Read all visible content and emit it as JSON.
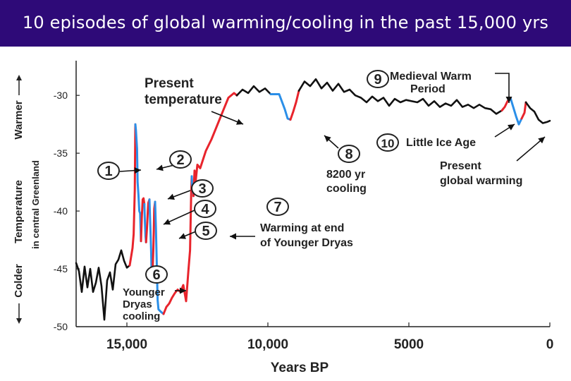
{
  "page": {
    "title": "10 episodes of global warming/cooling in the past 15,000 yrs"
  },
  "colors": {
    "warming": "#e8242c",
    "cooling": "#2b8fe8",
    "baseline": "#111111",
    "title_bg": "#2e0a78"
  },
  "chart_data": {
    "type": "line",
    "title": "10 episodes of global warming/cooling in the past 15,000 yrs",
    "xlabel": "Years BP",
    "ylabel": "Temperature in central Greenland",
    "ylabel_line1": "Temperature",
    "ylabel_line2": "in central Greenland",
    "y_warmer": "Warmer",
    "y_colder": "Colder",
    "xlim": [
      16800,
      0
    ],
    "ylim": [
      -50,
      -27
    ],
    "x_ticks": [
      {
        "v": 15000,
        "label": "15,000"
      },
      {
        "v": 10000,
        "label": "10,000"
      },
      {
        "v": 5000,
        "label": "5000"
      },
      {
        "v": 0,
        "label": "0"
      }
    ],
    "y_ticks": [
      {
        "v": -30,
        "label": "-30"
      },
      {
        "v": -35,
        "label": "-35"
      },
      {
        "v": -40,
        "label": "-40"
      },
      {
        "v": -45,
        "label": "-45"
      },
      {
        "v": -50,
        "label": "-50"
      }
    ],
    "series": [
      {
        "kind": "baseline",
        "points": [
          [
            16800,
            -44.5
          ],
          [
            16700,
            -45.2
          ],
          [
            16600,
            -47.0
          ],
          [
            16500,
            -44.8
          ],
          [
            16400,
            -46.6
          ],
          [
            16300,
            -45.0
          ],
          [
            16200,
            -47.0
          ],
          [
            16100,
            -46.2
          ],
          [
            16000,
            -44.9
          ],
          [
            15900,
            -46.5
          ],
          [
            15800,
            -49.4
          ],
          [
            15700,
            -46.0
          ],
          [
            15600,
            -45.3
          ],
          [
            15500,
            -46.8
          ],
          [
            15400,
            -44.6
          ],
          [
            15300,
            -44.2
          ],
          [
            15200,
            -43.4
          ],
          [
            15100,
            -44.3
          ],
          [
            15000,
            -44.9
          ],
          [
            14900,
            -44.7
          ]
        ]
      },
      {
        "kind": "warming",
        "points": [
          [
            14900,
            -44.7
          ],
          [
            14800,
            -43.2
          ],
          [
            14760,
            -42.0
          ],
          [
            14720,
            -38.2
          ],
          [
            14700,
            -32.5
          ]
        ]
      },
      {
        "kind": "cooling",
        "points": [
          [
            14700,
            -32.5
          ],
          [
            14680,
            -33.0
          ],
          [
            14640,
            -34.6
          ],
          [
            14620,
            -37.5
          ],
          [
            14590,
            -38.6
          ],
          [
            14560,
            -40.0
          ],
          [
            14530,
            -40.2
          ],
          [
            14500,
            -42.6
          ]
        ]
      },
      {
        "kind": "warming",
        "points": [
          [
            14500,
            -42.6
          ],
          [
            14470,
            -40.5
          ],
          [
            14440,
            -39.0
          ],
          [
            14410,
            -38.9
          ],
          [
            14380,
            -39.4
          ]
        ]
      },
      {
        "kind": "cooling",
        "points": [
          [
            14380,
            -39.4
          ],
          [
            14360,
            -41.0
          ],
          [
            14340,
            -42.2
          ],
          [
            14320,
            -42.7
          ]
        ]
      },
      {
        "kind": "warming",
        "points": [
          [
            14320,
            -42.7
          ],
          [
            14290,
            -41.6
          ],
          [
            14260,
            -40.1
          ],
          [
            14240,
            -39.3
          ],
          [
            14200,
            -39.0
          ]
        ]
      },
      {
        "kind": "cooling",
        "points": [
          [
            14200,
            -39.0
          ],
          [
            14170,
            -41.2
          ],
          [
            14140,
            -43.5
          ],
          [
            14120,
            -45.8
          ],
          [
            14100,
            -46.0
          ]
        ]
      },
      {
        "kind": "warming",
        "points": [
          [
            14100,
            -46.0
          ],
          [
            14060,
            -43.2
          ],
          [
            14030,
            -39.8
          ],
          [
            14000,
            -39.2
          ]
        ]
      },
      {
        "kind": "cooling",
        "points": [
          [
            14000,
            -39.2
          ],
          [
            13970,
            -41.5
          ],
          [
            13940,
            -44.6
          ],
          [
            13910,
            -47.7
          ],
          [
            13880,
            -48.5
          ],
          [
            13800,
            -48.7
          ],
          [
            13700,
            -48.9
          ]
        ]
      },
      {
        "kind": "warming",
        "points": [
          [
            13700,
            -48.9
          ],
          [
            13600,
            -48.3
          ],
          [
            13500,
            -48.0
          ],
          [
            13400,
            -47.5
          ],
          [
            13300,
            -47.1
          ],
          [
            13200,
            -46.8
          ],
          [
            13100,
            -47.0
          ],
          [
            13000,
            -46.4
          ],
          [
            12900,
            -47.8
          ],
          [
            12820,
            -45.2
          ],
          [
            12760,
            -43.4
          ],
          [
            12720,
            -38.5
          ],
          [
            12700,
            -37.0
          ]
        ]
      },
      {
        "kind": "cooling",
        "points": [
          [
            12700,
            -37.0
          ],
          [
            12680,
            -38.0
          ],
          [
            12660,
            -37.7
          ],
          [
            12640,
            -38.7
          ]
        ]
      },
      {
        "kind": "warming",
        "points": [
          [
            12640,
            -38.7
          ],
          [
            12600,
            -36.5
          ],
          [
            12560,
            -37.4
          ],
          [
            12500,
            -36.0
          ],
          [
            12400,
            -36.3
          ],
          [
            12200,
            -34.8
          ],
          [
            12000,
            -33.8
          ],
          [
            11800,
            -32.6
          ],
          [
            11600,
            -31.4
          ],
          [
            11400,
            -30.2
          ],
          [
            11200,
            -29.8
          ],
          [
            11100,
            -30.0
          ]
        ]
      },
      {
        "kind": "baseline",
        "points": [
          [
            11100,
            -30.0
          ],
          [
            10900,
            -29.5
          ],
          [
            10700,
            -29.8
          ],
          [
            10500,
            -29.2
          ],
          [
            10300,
            -29.7
          ],
          [
            10100,
            -29.4
          ],
          [
            9900,
            -29.9
          ]
        ]
      },
      {
        "kind": "cooling",
        "points": [
          [
            9900,
            -29.9
          ],
          [
            9600,
            -29.9
          ],
          [
            9400,
            -31.2
          ],
          [
            9300,
            -32.0
          ],
          [
            9200,
            -32.1
          ]
        ]
      },
      {
        "kind": "warming",
        "points": [
          [
            9200,
            -32.1
          ],
          [
            9100,
            -31.4
          ],
          [
            9000,
            -30.6
          ],
          [
            8900,
            -29.6
          ]
        ]
      },
      {
        "kind": "baseline",
        "points": [
          [
            8900,
            -29.6
          ],
          [
            8700,
            -28.8
          ],
          [
            8500,
            -29.2
          ],
          [
            8300,
            -28.6
          ],
          [
            8100,
            -29.4
          ],
          [
            7900,
            -28.9
          ],
          [
            7700,
            -29.6
          ],
          [
            7500,
            -29.0
          ],
          [
            7300,
            -29.7
          ],
          [
            7100,
            -29.5
          ],
          [
            6900,
            -30.0
          ],
          [
            6700,
            -30.2
          ],
          [
            6500,
            -30.6
          ],
          [
            6300,
            -30.1
          ],
          [
            6100,
            -30.5
          ],
          [
            5900,
            -30.2
          ],
          [
            5700,
            -30.9
          ],
          [
            5500,
            -30.3
          ],
          [
            5300,
            -30.6
          ],
          [
            5100,
            -30.4
          ],
          [
            4900,
            -30.5
          ],
          [
            4700,
            -30.6
          ],
          [
            4500,
            -30.3
          ],
          [
            4300,
            -30.9
          ],
          [
            4100,
            -30.5
          ],
          [
            3900,
            -31.0
          ],
          [
            3700,
            -30.7
          ],
          [
            3500,
            -30.9
          ],
          [
            3300,
            -30.4
          ],
          [
            3100,
            -31.0
          ],
          [
            2900,
            -30.8
          ],
          [
            2700,
            -31.1
          ],
          [
            2500,
            -30.8
          ],
          [
            2300,
            -31.1
          ],
          [
            2100,
            -31.2
          ],
          [
            1900,
            -31.6
          ],
          [
            1700,
            -31.3
          ]
        ]
      },
      {
        "kind": "warming",
        "points": [
          [
            1700,
            -31.3
          ],
          [
            1600,
            -31.0
          ],
          [
            1500,
            -30.5
          ],
          [
            1400,
            -30.2
          ]
        ]
      },
      {
        "kind": "cooling",
        "points": [
          [
            1400,
            -30.2
          ],
          [
            1300,
            -31.0
          ],
          [
            1200,
            -31.8
          ],
          [
            1100,
            -32.5
          ],
          [
            1000,
            -32.0
          ]
        ]
      },
      {
        "kind": "warming",
        "points": [
          [
            1000,
            -32.0
          ],
          [
            900,
            -31.5
          ],
          [
            850,
            -30.6
          ]
        ]
      },
      {
        "kind": "baseline",
        "points": [
          [
            850,
            -30.6
          ],
          [
            700,
            -31.1
          ],
          [
            550,
            -31.4
          ],
          [
            400,
            -32.1
          ],
          [
            250,
            -32.4
          ],
          [
            100,
            -32.3
          ],
          [
            0,
            -32.2
          ]
        ]
      }
    ],
    "annotations": [
      {
        "n": "1"
      },
      {
        "n": "2"
      },
      {
        "n": "3"
      },
      {
        "n": "4"
      },
      {
        "n": "5"
      },
      {
        "n": "6"
      },
      {
        "n": "7"
      },
      {
        "n": "8"
      },
      {
        "n": "9"
      },
      {
        "n": "10"
      }
    ],
    "text_labels": {
      "present_temp_1": "Present",
      "present_temp_2": "temperature",
      "medieval_1": "Medieval Warm",
      "medieval_2": "Period",
      "little_ice_age": "Little Ice Age",
      "present_gw_1": "Present",
      "present_gw_2": "global warming",
      "cooling8200_1": "8200 yr",
      "cooling8200_2": "cooling",
      "younger_dryas_1": "Warming at end",
      "younger_dryas_2": "of Younger Dryas",
      "yd_cooling_1": "Younger",
      "yd_cooling_2": "Dryas",
      "yd_cooling_3": "cooling"
    }
  }
}
